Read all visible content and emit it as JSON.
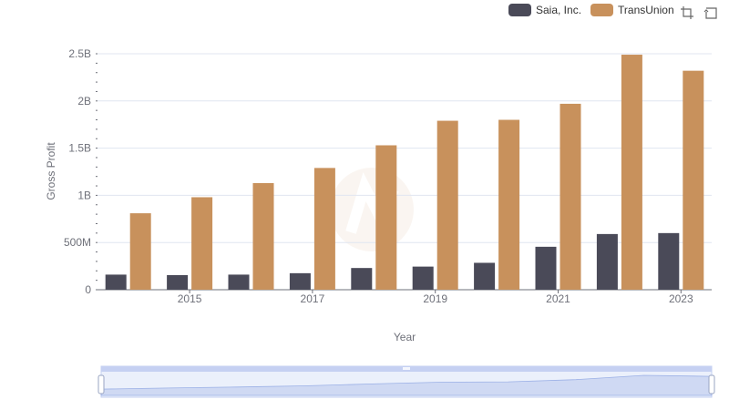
{
  "chart_data": {
    "type": "bar",
    "title": "",
    "xlabel": "Year",
    "ylabel": "Gross Profit",
    "categories": [
      "2014",
      "2015",
      "2016",
      "2017",
      "2018",
      "2019",
      "2020",
      "2021",
      "2022",
      "2023"
    ],
    "x_tick_labels": [
      "2015",
      "2017",
      "2019",
      "2021",
      "2023"
    ],
    "ylim": [
      0,
      2500000000
    ],
    "y_ticks": [
      0,
      500000000,
      1000000000,
      1500000000,
      2000000000,
      2500000000
    ],
    "y_tick_labels": [
      "0",
      "500M",
      "1B",
      "1.5B",
      "2B",
      "2.5B"
    ],
    "grid": true,
    "legend_position": "top-right",
    "series": [
      {
        "name": "Saia, Inc.",
        "color": "#4a4a58",
        "values": [
          160000000,
          155000000,
          160000000,
          175000000,
          230000000,
          245000000,
          285000000,
          455000000,
          590000000,
          600000000
        ]
      },
      {
        "name": "TransUnion",
        "color": "#c8915c",
        "values": [
          810000000,
          980000000,
          1130000000,
          1290000000,
          1530000000,
          1790000000,
          1800000000,
          1970000000,
          2490000000,
          2320000000
        ]
      }
    ]
  },
  "legend": {
    "items": [
      {
        "label": "Saia, Inc.",
        "color": "#4a4a58"
      },
      {
        "label": "TransUnion",
        "color": "#c8915c"
      }
    ]
  },
  "toolbox": {
    "zoom_icon": "zoom-icon",
    "restore_icon": "restore-icon"
  },
  "colors": {
    "grid": "#e0e6f1",
    "axis": "#6e7079",
    "slider_fill": "#dbe3f8",
    "slider_border": "#c5d0f2",
    "slider_line": "#9bb0e6"
  }
}
